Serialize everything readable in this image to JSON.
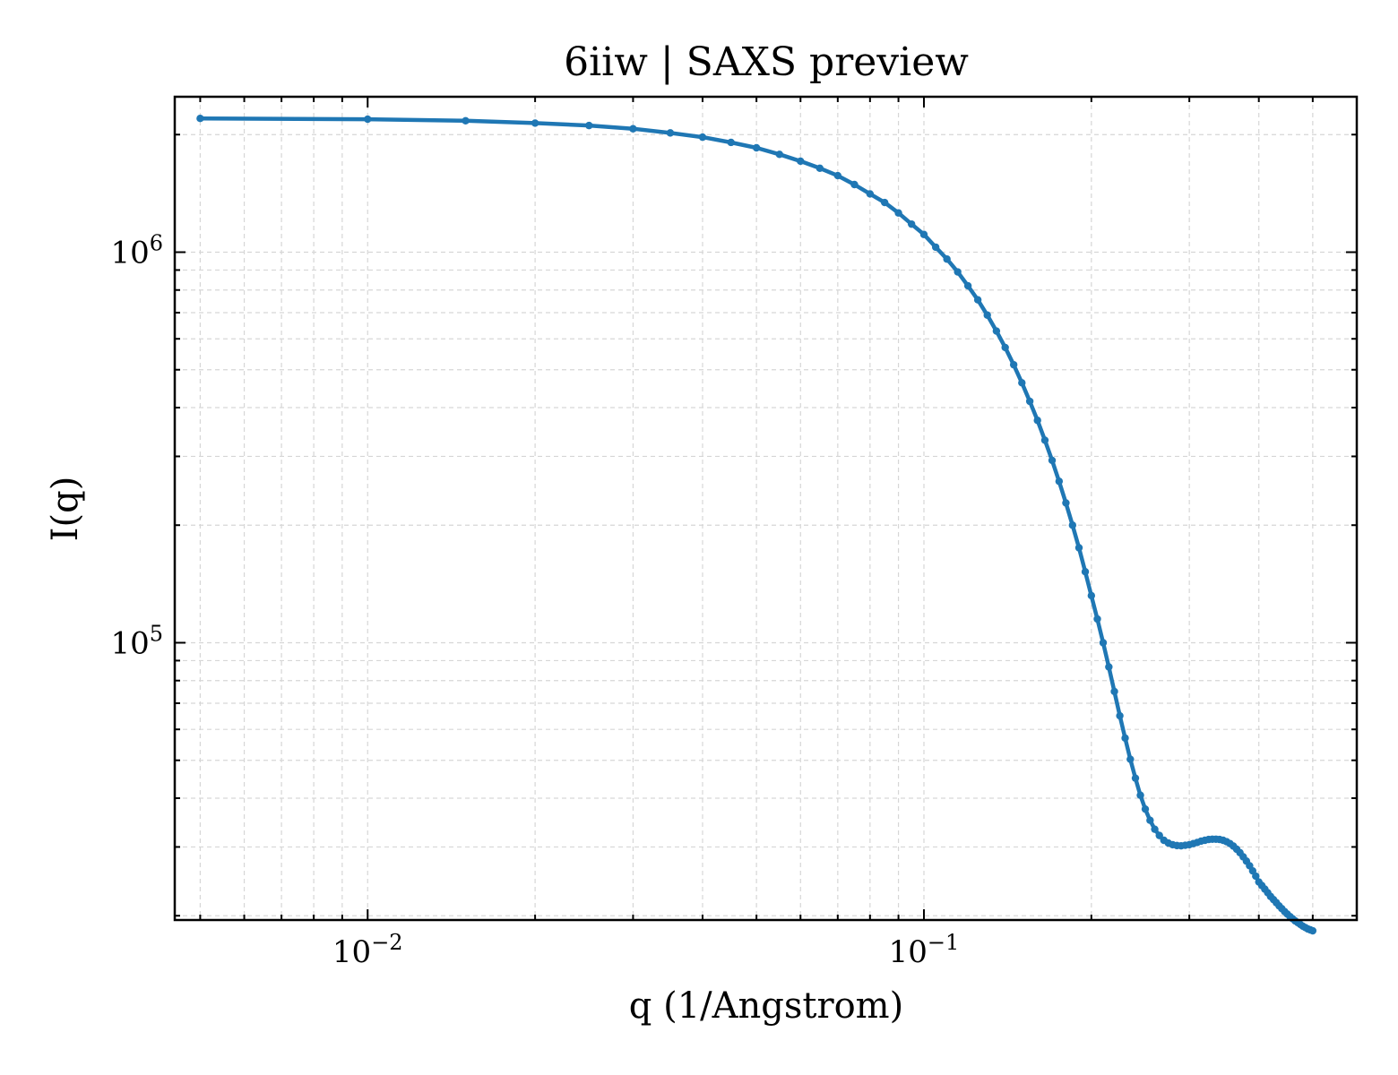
{
  "chart_data": {
    "type": "line",
    "title": "6iiw | SAXS preview",
    "xlabel": "q (1/Angstrom)",
    "ylabel": "I(q)",
    "xscale": "log",
    "yscale": "log",
    "xlim": [
      0.0045,
      0.6
    ],
    "ylim": [
      19500,
      2500000
    ],
    "x_ticks": [
      {
        "value": 0.01,
        "base": "10",
        "exp": "−2"
      },
      {
        "value": 0.1,
        "base": "10",
        "exp": "−1"
      }
    ],
    "y_ticks": [
      {
        "value": 100000,
        "base": "10",
        "exp": "5"
      },
      {
        "value": 1000000,
        "base": "10",
        "exp": "6"
      }
    ],
    "grid": true,
    "line_color": "#1f77b4",
    "series": [
      {
        "x": [
          0.005,
          0.01,
          0.015,
          0.02,
          0.025,
          0.03,
          0.035,
          0.04,
          0.045,
          0.05,
          0.055,
          0.06,
          0.065,
          0.07,
          0.075,
          0.08,
          0.085,
          0.09,
          0.095,
          0.1,
          0.105,
          0.11,
          0.115,
          0.12,
          0.125,
          0.13,
          0.135,
          0.14,
          0.145,
          0.15,
          0.155,
          0.16,
          0.165,
          0.17,
          0.175,
          0.18,
          0.185,
          0.19,
          0.195,
          0.2,
          0.205,
          0.21,
          0.215,
          0.22,
          0.225,
          0.23,
          0.235,
          0.24,
          0.245,
          0.25,
          0.255,
          0.26,
          0.265,
          0.27,
          0.275,
          0.28,
          0.285,
          0.29,
          0.295,
          0.3,
          0.305,
          0.31,
          0.315,
          0.32,
          0.325,
          0.33,
          0.335,
          0.34,
          0.345,
          0.35,
          0.355,
          0.36,
          0.365,
          0.37,
          0.375,
          0.38,
          0.385,
          0.39,
          0.395,
          0.4,
          0.405,
          0.41,
          0.415,
          0.42,
          0.425,
          0.43,
          0.435,
          0.44,
          0.445,
          0.45,
          0.455,
          0.46,
          0.465,
          0.47,
          0.475,
          0.48,
          0.485,
          0.49,
          0.495,
          0.5
        ],
        "y": [
          2200000,
          2190000,
          2170000,
          2140000,
          2110000,
          2070000,
          2020000,
          1970000,
          1910000,
          1850000,
          1780000,
          1710000,
          1640000,
          1570000,
          1490000,
          1410000,
          1340000,
          1260000,
          1180000,
          1110000,
          1030000,
          960000,
          890000,
          820000,
          755000,
          690000,
          628000,
          570000,
          515000,
          463000,
          415000,
          371000,
          330000,
          293000,
          259000,
          228000,
          200000,
          175000,
          152000,
          132000,
          115000,
          100000,
          86700,
          75000,
          65000,
          57000,
          50300,
          45000,
          40700,
          37500,
          35100,
          33300,
          32100,
          31200,
          30700,
          30400,
          30250,
          30200,
          30300,
          30400,
          30600,
          30800,
          31050,
          31200,
          31350,
          31400,
          31400,
          31350,
          31200,
          30950,
          30600,
          30150,
          29600,
          29000,
          28300,
          27600,
          26850,
          26050,
          25250,
          24400,
          23900,
          23400,
          22900,
          22400,
          22000,
          21600,
          21200,
          20850,
          20500,
          20200,
          19900,
          19650,
          19400,
          19200,
          19000,
          18800,
          18650,
          18500,
          18400,
          18300
        ]
      }
    ]
  }
}
